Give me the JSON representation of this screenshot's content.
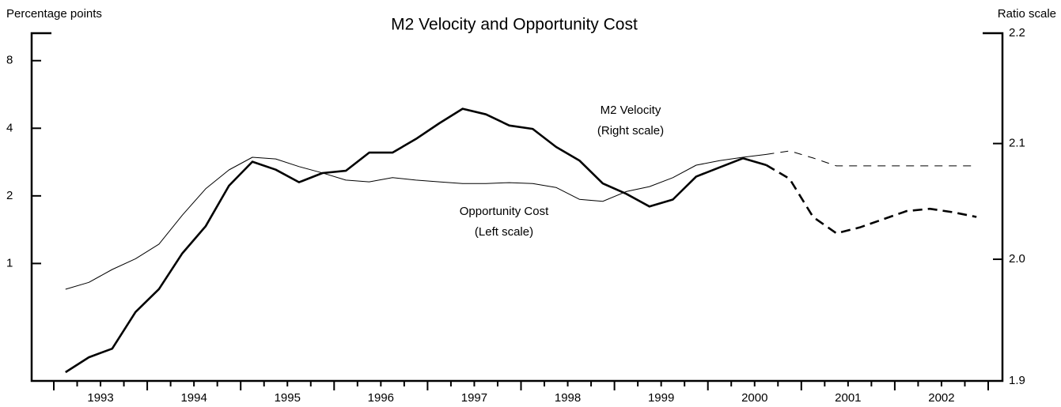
{
  "chart_data": {
    "type": "line",
    "title": "M2 Velocity and Opportunity Cost",
    "y_label": "Percentage points",
    "y2_label": "Ratio scale",
    "xlim": [
      1993,
      2003
    ],
    "xticks": [
      {
        "value": 1993.5,
        "label": "1993"
      },
      {
        "value": 1994.5,
        "label": "1994"
      },
      {
        "value": 1995.5,
        "label": "1995"
      },
      {
        "value": 1996.5,
        "label": "1996"
      },
      {
        "value": 1997.5,
        "label": "1997"
      },
      {
        "value": 1998.5,
        "label": "1998"
      },
      {
        "value": 1999.5,
        "label": "1999"
      },
      {
        "value": 2000.5,
        "label": "2000"
      },
      {
        "value": 2001.5,
        "label": "2001"
      },
      {
        "value": 2002.5,
        "label": "2002"
      }
    ],
    "y_log": true,
    "ylim": [
      0.3,
      10.6
    ],
    "yticks": [
      1,
      2,
      4,
      8
    ],
    "y2_log": true,
    "y2lim": [
      1.9,
      2.2
    ],
    "y2ticks": [
      2.2,
      2.1,
      {
        "value": 2,
        "label": "2.0"
      },
      1.9
    ],
    "series": [
      {
        "axis": "y",
        "color": "#000000",
        "width": 1,
        "dashed": false,
        "x": [
          1993.125,
          1993.375,
          1993.625,
          1993.875,
          1994.125,
          1994.375,
          1994.625,
          1994.875,
          1995.125,
          1995.375,
          1995.625,
          1995.875,
          1996.125,
          1996.375,
          1996.625,
          1996.875,
          1997.125,
          1997.375,
          1997.625,
          1997.875,
          1998.125,
          1998.375,
          1998.625,
          1998.875,
          1999.125,
          1999.375,
          1999.625,
          1999.875,
          2000.125,
          2000.375,
          2000.625
        ],
        "values": [
          0.768,
          0.824,
          0.94,
          1.05,
          1.22,
          1.64,
          2.15,
          2.61,
          2.97,
          2.92,
          2.7,
          2.53,
          2.35,
          2.31,
          2.41,
          2.35,
          2.31,
          2.27,
          2.27,
          2.29,
          2.27,
          2.18,
          1.93,
          1.89,
          2.09,
          2.2,
          2.41,
          2.74,
          2.87,
          2.97,
          3.06
        ]
      },
      {
        "axis": "y",
        "color": "#000000",
        "width": 1,
        "dashed": true,
        "x": [
          2000.625,
          2000.875,
          2001.125,
          2001.375,
          2001.625,
          2001.875,
          2002.125,
          2002.375,
          2002.625,
          2002.875
        ],
        "values": [
          3.06,
          3.17,
          2.95,
          2.72,
          2.72,
          2.72,
          2.72,
          2.72,
          2.72,
          2.72
        ]
      },
      {
        "axis": "y2",
        "color": "#000000",
        "width": 2.6,
        "dashed": false,
        "x": [
          1993.125,
          1993.375,
          1993.625,
          1993.875,
          1994.125,
          1994.375,
          1994.625,
          1994.875,
          1995.125,
          1995.375,
          1995.625,
          1995.875,
          1996.125,
          1996.375,
          1996.625,
          1996.875,
          1997.125,
          1997.375,
          1997.625,
          1997.875,
          1998.125,
          1998.375,
          1998.625,
          1998.875,
          1999.125,
          1999.375,
          1999.625,
          1999.875,
          2000.125,
          2000.375,
          2000.625
        ],
        "values": [
          1.907,
          1.919,
          1.926,
          1.956,
          1.975,
          2.005,
          2.028,
          2.063,
          2.084,
          2.077,
          2.066,
          2.074,
          2.076,
          2.092,
          2.092,
          2.104,
          2.118,
          2.131,
          2.126,
          2.116,
          2.113,
          2.097,
          2.085,
          2.065,
          2.056,
          2.045,
          2.051,
          2.071,
          2.079,
          2.087,
          2.081
        ]
      },
      {
        "axis": "y2",
        "color": "#000000",
        "width": 2.6,
        "dashed": true,
        "x": [
          2000.625,
          2000.875,
          2001.125,
          2001.375,
          2001.625,
          2001.875,
          2002.125,
          2002.375,
          2002.625,
          2002.875
        ],
        "values": [
          2.081,
          2.069,
          2.036,
          2.022,
          2.027,
          2.034,
          2.041,
          2.043,
          2.04,
          2.036
        ]
      }
    ],
    "annotations": [
      "M2 Velocity",
      "(Right scale)",
      "Opportunity Cost",
      "(Left scale)"
    ]
  }
}
